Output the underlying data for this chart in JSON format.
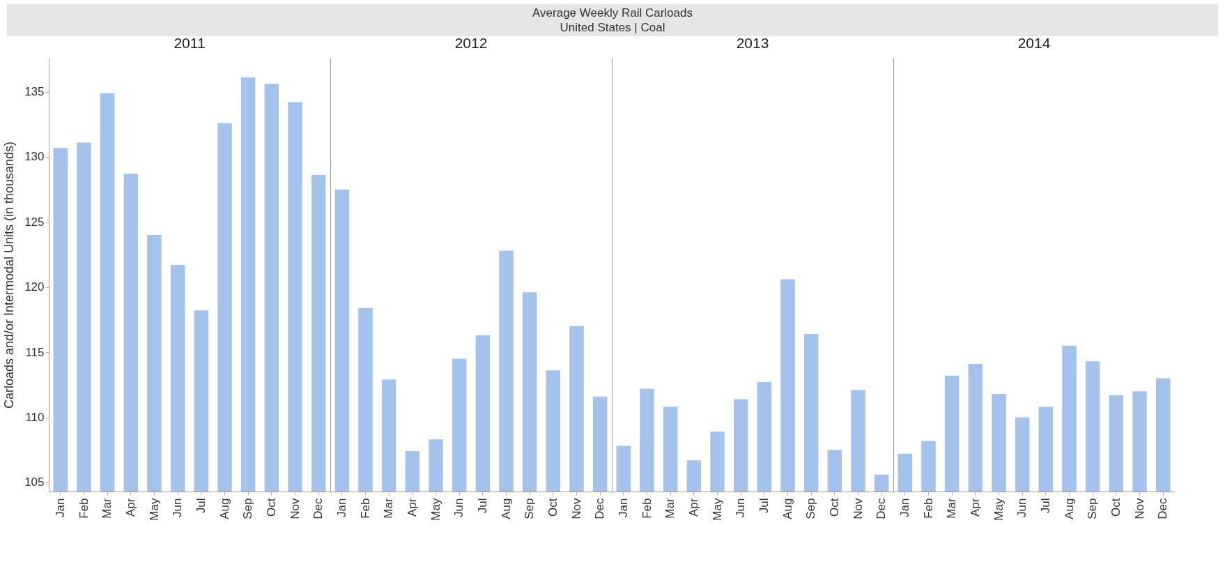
{
  "chart_data": [
    {
      "type": "bar",
      "title": "2011",
      "ylabel": "Carloads and/or Intermodal Units (in thousands)",
      "annotations": [
        "Average Weekly Rail Carloads",
        "United States | Coal"
      ],
      "categories": [
        "Jan",
        "Feb",
        "Mar",
        "Apr",
        "May",
        "Jun",
        "Jul",
        "Aug",
        "Sep",
        "Oct",
        "Nov",
        "Dec"
      ],
      "values": [
        130.7,
        131.1,
        134.9,
        128.7,
        124.0,
        121.7,
        118.2,
        132.6,
        136.1,
        135.6,
        134.2,
        128.6
      ],
      "color": "#a4c2eb",
      "ylim": [
        104.3,
        137.6
      ],
      "yticks": [
        105,
        110,
        115,
        120,
        125,
        130,
        135
      ],
      "grid": false
    },
    {
      "type": "bar",
      "title": "2012",
      "categories": [
        "Jan",
        "Feb",
        "Mar",
        "Apr",
        "May",
        "Jun",
        "Jul",
        "Aug",
        "Sep",
        "Oct",
        "Nov",
        "Dec"
      ],
      "values": [
        127.5,
        118.4,
        112.9,
        107.4,
        108.3,
        114.5,
        116.3,
        122.8,
        119.6,
        113.6,
        117.0,
        111.6
      ],
      "color": "#a4c2eb",
      "ylim": [
        104.3,
        137.6
      ],
      "yticks": [
        105,
        110,
        115,
        120,
        125,
        130,
        135
      ],
      "grid": false,
      "tick_labels": "x"
    },
    {
      "type": "bar",
      "title": "2013",
      "categories": [
        "Jan",
        "Feb",
        "Mar",
        "Apr",
        "May",
        "Jun",
        "Jul",
        "Aug",
        "Sep",
        "Oct",
        "Nov",
        "Dec"
      ],
      "values": [
        107.8,
        112.2,
        110.8,
        106.7,
        108.9,
        111.4,
        112.7,
        120.6,
        116.4,
        107.5,
        112.1,
        105.6
      ],
      "color": "#a4c2eb",
      "ylim": [
        104.3,
        137.6
      ],
      "yticks": [
        105,
        110,
        115,
        120,
        125,
        130,
        135
      ],
      "grid": false,
      "tick_labels": "x"
    },
    {
      "type": "bar",
      "title": "2014",
      "categories": [
        "Jan",
        "Feb",
        "Mar",
        "Apr",
        "May",
        "Jun",
        "Jul",
        "Aug",
        "Sep",
        "Oct",
        "Nov",
        "Dec"
      ],
      "values": [
        107.2,
        108.2,
        113.2,
        114.1,
        111.8,
        110.0,
        110.8,
        115.5,
        114.3,
        111.7,
        112.0,
        113.0
      ],
      "color": "#a4c2eb",
      "ylim": [
        104.3,
        137.6
      ],
      "yticks": [
        105,
        110,
        115,
        120,
        125,
        130,
        135
      ],
      "grid": false,
      "tick_labels": "x"
    }
  ]
}
